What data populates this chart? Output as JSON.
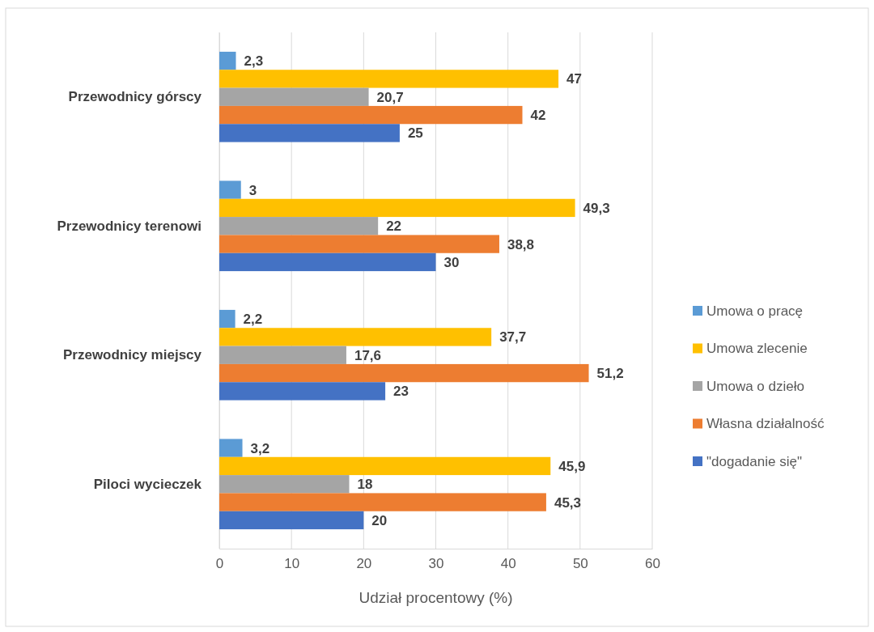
{
  "chart_data": {
    "type": "bar",
    "orientation": "horizontal",
    "xlabel": "Udział procentowy (%)",
    "categories": [
      "Przewodnicy górscy",
      "Przewodnicy terenowi",
      "Przewodnicy miejscy",
      "Piloci wycieczek"
    ],
    "series": [
      {
        "name": "Umowa o pracę",
        "color": "#5b9bd5",
        "values": [
          2.3,
          3,
          2.2,
          3.2
        ],
        "value_labels": [
          "2,3",
          "3",
          "2,2",
          "3,2"
        ]
      },
      {
        "name": "Umowa zlecenie",
        "color": "#ffc000",
        "values": [
          47,
          49.3,
          37.7,
          45.9
        ],
        "value_labels": [
          "47",
          "49,3",
          "37,7",
          "45,9"
        ]
      },
      {
        "name": "Umowa o dzieło",
        "color": "#a5a5a5",
        "values": [
          20.7,
          22,
          17.6,
          18
        ],
        "value_labels": [
          "20,7",
          "22",
          "17,6",
          "18"
        ]
      },
      {
        "name": "Własna działalność",
        "color": "#ed7d31",
        "values": [
          42,
          38.8,
          51.2,
          45.3
        ],
        "value_labels": [
          "42",
          "38,8",
          "51,2",
          "45,3"
        ]
      },
      {
        "name": "\"dogadanie się\"",
        "color": "#4472c4",
        "values": [
          25,
          30,
          23,
          20
        ],
        "value_labels": [
          "25",
          "30",
          "23",
          "20"
        ]
      }
    ],
    "xlim": [
      0,
      60
    ],
    "xticks": [
      0,
      10,
      20,
      30,
      40,
      50,
      60
    ],
    "grid": "x",
    "legend": "right"
  }
}
